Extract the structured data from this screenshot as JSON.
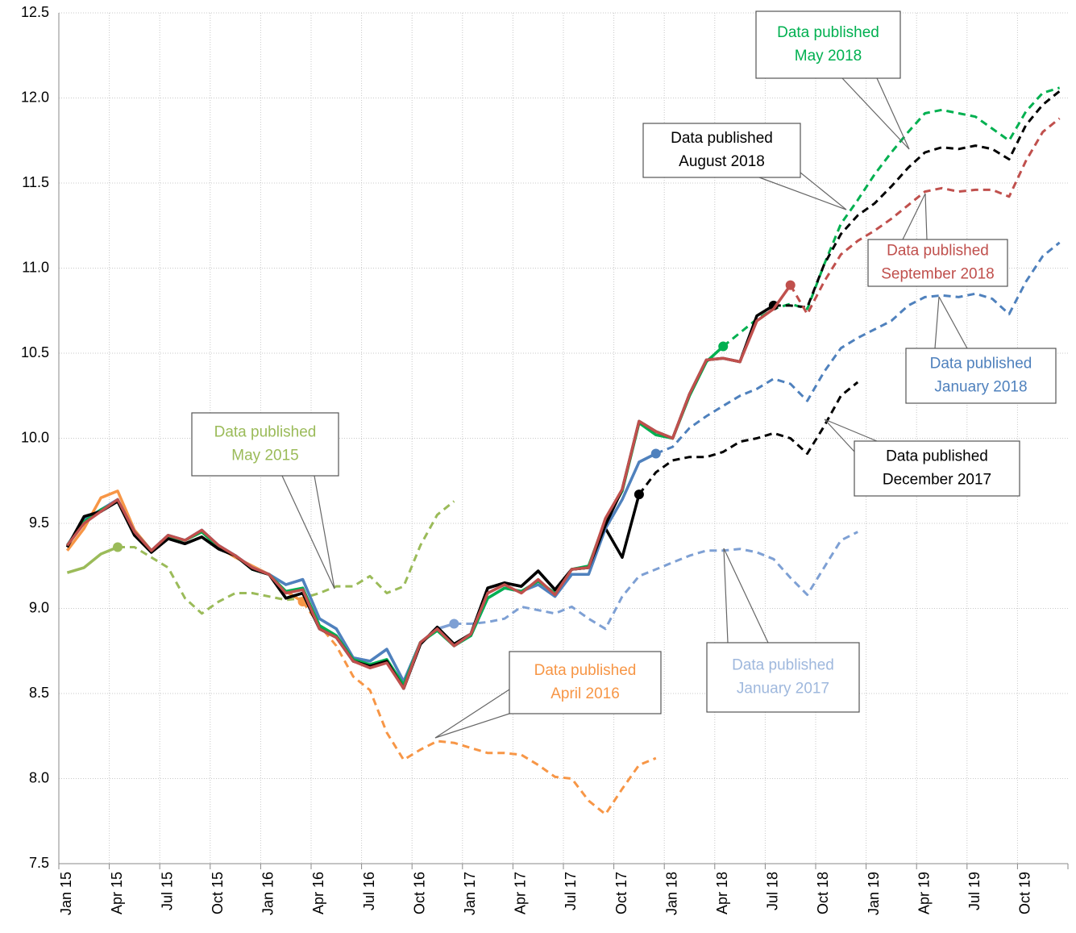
{
  "chart_data": {
    "type": "line",
    "categories": [
      "Jan 15",
      null,
      null,
      "Apr 15",
      null,
      null,
      "Jul 15",
      null,
      null,
      "Oct 15",
      null,
      null,
      "Jan 16",
      null,
      null,
      "Apr 16",
      null,
      null,
      "Jul 16",
      null,
      null,
      "Oct 16",
      null,
      null,
      "Jan 17",
      null,
      null,
      "Apr 17",
      null,
      null,
      "Jul 17",
      null,
      null,
      "Oct 17",
      null,
      null,
      "Jan 18",
      null,
      null,
      "Apr 18",
      null,
      null,
      "Jul 18",
      null,
      null,
      "Oct 18",
      null,
      null,
      "Jan 19",
      null,
      null,
      "Apr 19",
      null,
      null,
      "Jul 19",
      null,
      null,
      "Oct 19",
      null,
      null
    ],
    "ylim": [
      7.5,
      12.5
    ],
    "yticks": [
      7.5,
      {
        "value": 8,
        "label": "8.0"
      },
      8.5,
      {
        "value": 9,
        "label": "9.0"
      },
      9.5,
      {
        "value": 10,
        "label": "10.0"
      },
      10.5,
      {
        "value": 11,
        "label": "11.0"
      },
      11.5,
      {
        "value": 12,
        "label": "12.0"
      },
      12.5
    ],
    "grid": true,
    "series": [
      {
        "color": "#9bbb59",
        "dash_from": 3,
        "values": [
          9.21,
          9.24,
          9.32,
          9.36,
          9.36,
          9.3,
          9.24,
          9.06,
          8.97,
          9.04,
          9.09,
          9.09,
          9.07,
          9.05,
          9.06,
          9.09,
          9.13,
          9.13,
          9.19,
          9.09,
          9.13,
          9.37,
          9.55,
          9.63,
          null,
          null,
          null,
          null,
          null,
          null,
          null,
          null,
          null,
          null,
          null,
          null,
          null,
          null,
          null,
          null,
          null,
          null,
          null,
          null,
          null,
          null,
          null,
          null,
          null,
          null,
          null,
          null,
          null,
          null,
          null,
          null,
          null,
          null,
          null,
          null
        ]
      },
      {
        "color": "#f79646",
        "dash_from": 14,
        "values": [
          9.34,
          9.47,
          9.65,
          9.69,
          9.46,
          9.34,
          9.43,
          9.4,
          9.45,
          9.36,
          9.3,
          9.25,
          9.2,
          9.1,
          9.04,
          8.9,
          8.78,
          8.6,
          8.52,
          8.27,
          8.11,
          8.17,
          8.22,
          8.21,
          8.18,
          8.15,
          8.15,
          8.14,
          8.08,
          8.01,
          8.0,
          7.87,
          7.79,
          7.94,
          8.08,
          8.12,
          null,
          null,
          null,
          null,
          null,
          null,
          null,
          null,
          null,
          null,
          null,
          null,
          null,
          null,
          null,
          null,
          null,
          null,
          null,
          null,
          null,
          null,
          null,
          null
        ]
      },
      {
        "color": "#7ea0d4",
        "dash_from": 23,
        "values": [
          9.37,
          9.52,
          9.58,
          9.64,
          9.45,
          9.34,
          9.43,
          9.4,
          9.46,
          9.37,
          9.31,
          9.24,
          9.2,
          9.14,
          9.17,
          8.94,
          8.88,
          8.71,
          8.69,
          8.76,
          8.57,
          8.8,
          8.88,
          8.91,
          8.91,
          8.92,
          8.94,
          9.01,
          8.99,
          8.97,
          9.01,
          8.94,
          8.88,
          9.07,
          9.19,
          9.23,
          9.27,
          9.31,
          9.34,
          9.34,
          9.35,
          9.33,
          9.29,
          9.18,
          9.08,
          9.24,
          9.4,
          9.45,
          null,
          null,
          null,
          null,
          null,
          null,
          null,
          null,
          null,
          null,
          null,
          null
        ]
      },
      {
        "color": "#000000",
        "dash_from": 34,
        "values": [
          9.36,
          9.54,
          9.57,
          9.63,
          9.43,
          9.33,
          9.41,
          9.38,
          9.42,
          9.35,
          9.31,
          9.23,
          9.2,
          9.06,
          9.09,
          8.88,
          8.83,
          8.69,
          8.66,
          8.69,
          8.53,
          8.79,
          8.89,
          8.79,
          8.85,
          9.12,
          9.15,
          9.13,
          9.22,
          9.11,
          9.23,
          9.24,
          9.47,
          9.3,
          9.67,
          9.8,
          9.87,
          9.89,
          9.89,
          9.92,
          9.98,
          10.0,
          10.03,
          10.0,
          9.91,
          10.07,
          10.25,
          10.33,
          null,
          null,
          null,
          null,
          null,
          null,
          null,
          null,
          null,
          null,
          null,
          null
        ]
      },
      {
        "color": "#4f81bd",
        "dash_from": 35,
        "values": [
          9.37,
          9.52,
          9.58,
          9.64,
          9.45,
          9.34,
          9.43,
          9.4,
          9.46,
          9.37,
          9.31,
          9.24,
          9.2,
          9.14,
          9.17,
          8.94,
          8.88,
          8.71,
          8.69,
          8.76,
          8.57,
          8.8,
          8.88,
          8.78,
          8.84,
          9.06,
          9.12,
          9.1,
          9.14,
          9.07,
          9.2,
          9.2,
          9.47,
          9.64,
          9.86,
          9.91,
          9.95,
          10.06,
          10.13,
          10.19,
          10.25,
          10.29,
          10.35,
          10.32,
          10.22,
          10.39,
          10.53,
          10.59,
          10.64,
          10.69,
          10.78,
          10.83,
          10.84,
          10.83,
          10.85,
          10.82,
          10.73,
          10.92,
          11.07,
          11.15
        ]
      },
      {
        "color": "#00b050",
        "dash_from": 39,
        "values": [
          9.37,
          9.51,
          9.58,
          9.63,
          9.45,
          9.34,
          9.42,
          9.4,
          9.45,
          9.36,
          9.31,
          9.23,
          9.2,
          9.1,
          9.12,
          8.9,
          8.84,
          8.7,
          8.67,
          8.7,
          8.55,
          8.8,
          8.87,
          8.78,
          8.84,
          9.06,
          9.12,
          9.1,
          9.16,
          9.09,
          9.23,
          9.25,
          9.52,
          9.69,
          10.09,
          10.02,
          10.0,
          10.25,
          10.45,
          10.54,
          10.62,
          10.7,
          10.76,
          10.79,
          10.76,
          11.02,
          11.26,
          11.4,
          11.55,
          11.68,
          11.8,
          11.91,
          11.93,
          11.91,
          11.89,
          11.82,
          11.75,
          11.92,
          12.03,
          12.06
        ]
      },
      {
        "color": "#000000",
        "dash_from": 42,
        "values": [
          9.36,
          9.54,
          9.57,
          9.63,
          9.43,
          9.33,
          9.41,
          9.38,
          9.42,
          9.35,
          9.31,
          9.23,
          9.2,
          9.06,
          9.09,
          8.88,
          8.83,
          8.69,
          8.66,
          8.69,
          8.53,
          8.79,
          8.89,
          8.79,
          8.85,
          9.12,
          9.15,
          9.13,
          9.22,
          9.11,
          9.23,
          9.24,
          9.49,
          9.7,
          10.1,
          10.04,
          10.0,
          10.26,
          10.46,
          10.47,
          10.45,
          10.72,
          10.78,
          10.78,
          10.77,
          11.02,
          11.2,
          11.31,
          11.38,
          11.48,
          11.59,
          11.68,
          11.71,
          11.7,
          11.72,
          11.7,
          11.64,
          11.84,
          11.96,
          12.04
        ]
      },
      {
        "color": "#c0504d",
        "dash_from": 43,
        "values": [
          9.37,
          9.5,
          9.57,
          9.64,
          9.45,
          9.34,
          9.43,
          9.4,
          9.46,
          9.37,
          9.31,
          9.24,
          9.2,
          9.09,
          9.11,
          8.88,
          8.83,
          8.69,
          8.65,
          8.68,
          8.53,
          8.8,
          8.88,
          8.78,
          8.85,
          9.09,
          9.14,
          9.09,
          9.17,
          9.08,
          9.23,
          9.24,
          9.53,
          9.7,
          10.1,
          10.04,
          10.0,
          10.26,
          10.46,
          10.47,
          10.45,
          10.69,
          10.76,
          10.9,
          10.73,
          10.92,
          11.08,
          11.16,
          11.22,
          11.29,
          11.37,
          11.45,
          11.47,
          11.45,
          11.46,
          11.46,
          11.42,
          11.63,
          11.8,
          11.88
        ]
      }
    ],
    "annotations": [
      {
        "lines": [
          "Data published",
          "May 2015"
        ],
        "color": "#9bbb59"
      },
      {
        "lines": [
          "Data published",
          "April 2016"
        ],
        "color": "#f79646"
      },
      {
        "lines": [
          "Data published",
          "January 2017"
        ],
        "color": "#9fb8dd"
      },
      {
        "lines": [
          "Data published",
          "December 2017"
        ],
        "color": "#000000"
      },
      {
        "lines": [
          "Data published",
          "January 2018"
        ],
        "color": "#4f81bd"
      },
      {
        "lines": [
          "Data published",
          "May 2018"
        ],
        "color": "#00b050"
      },
      {
        "lines": [
          "Data published",
          "August 2018"
        ],
        "color": "#000000"
      },
      {
        "lines": [
          "Data published",
          "September 2018"
        ],
        "color": "#c0504d"
      }
    ]
  }
}
